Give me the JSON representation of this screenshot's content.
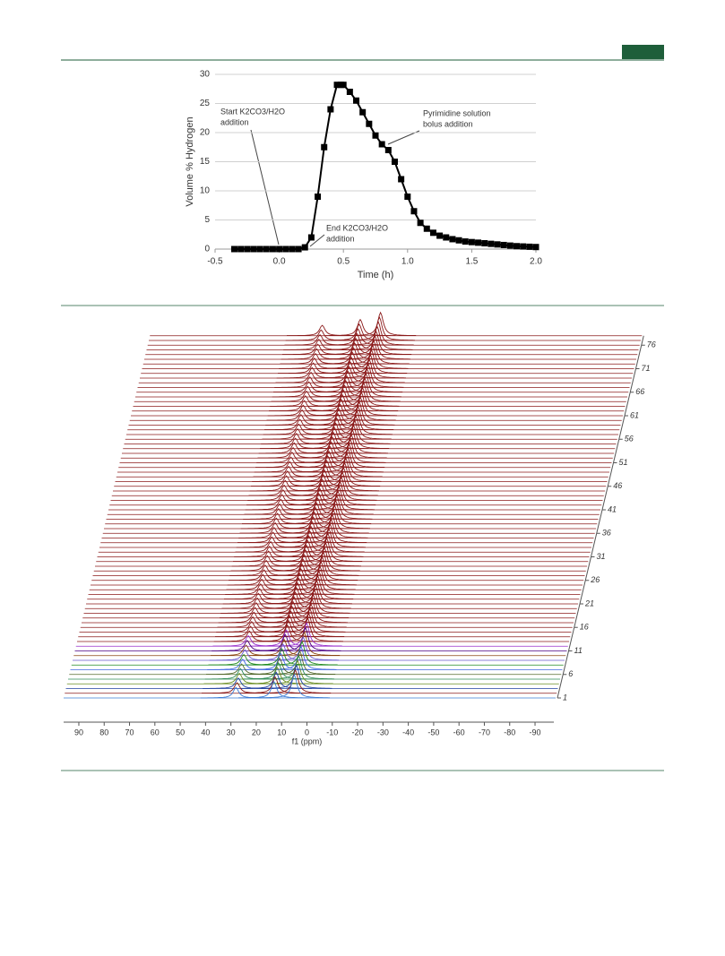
{
  "chart_data": [
    {
      "type": "line",
      "x_label": "Time (h)",
      "y_label": "Volume % Hydrogen",
      "x": [
        -0.35,
        -0.3,
        -0.25,
        -0.2,
        -0.15,
        -0.1,
        -0.05,
        0,
        0.05,
        0.1,
        0.15,
        0.2,
        0.25,
        0.3,
        0.35,
        0.4,
        0.45,
        0.48,
        0.5,
        0.55,
        0.6,
        0.65,
        0.7,
        0.75,
        0.8,
        0.85,
        0.9,
        0.95,
        1.0,
        1.05,
        1.1,
        1.15,
        1.2,
        1.25,
        1.3,
        1.35,
        1.4,
        1.45,
        1.5,
        1.55,
        1.6,
        1.65,
        1.7,
        1.75,
        1.8,
        1.85,
        1.9,
        1.95,
        2.0
      ],
      "values": [
        0,
        0,
        0,
        0,
        0,
        0,
        0,
        0,
        0,
        0,
        0,
        0.3,
        2,
        9,
        17.5,
        24,
        28.2,
        28.2,
        28.2,
        27,
        25.5,
        23.5,
        21.5,
        19.5,
        18,
        17,
        15,
        12,
        9,
        6.5,
        4.5,
        3.5,
        2.8,
        2.3,
        2,
        1.7,
        1.5,
        1.3,
        1.2,
        1.1,
        1.0,
        0.9,
        0.8,
        0.7,
        0.6,
        0.5,
        0.45,
        0.4,
        0.35
      ],
      "color": "#000000",
      "xlim": [
        -0.5,
        2.0
      ],
      "xticks": [
        -0.5,
        {
          "value": 0,
          "label": "0.0"
        },
        0.5,
        {
          "value": 1,
          "label": "1.0"
        },
        1.5,
        {
          "value": 2,
          "label": "2.0"
        }
      ],
      "ylim": [
        0,
        30
      ],
      "yticks": [
        0,
        5,
        10,
        15,
        20,
        25,
        30
      ],
      "grid": true,
      "annotations": [
        {
          "lines": [
            "Start K2CO3/H2O",
            "addition"
          ]
        },
        {
          "lines": [
            "End K2CO3/H2O",
            "addition"
          ]
        },
        {
          "lines": [
            "Pyrimidine solution",
            "bolus addition"
          ]
        }
      ]
    },
    {
      "type": "stacked-spectra",
      "x_label": "f1 (ppm)",
      "xlim": [
        96,
        -96
      ],
      "xticks": [
        90,
        80,
        70,
        60,
        50,
        40,
        30,
        20,
        10,
        0,
        -10,
        -20,
        -30,
        -40,
        -50,
        -60,
        -70,
        -80,
        -90
      ],
      "zlim": [
        1,
        78
      ],
      "zticks": [
        1,
        6,
        11,
        16,
        21,
        26,
        31,
        36,
        41,
        46,
        51,
        56,
        61,
        66,
        71,
        76
      ],
      "peaks": [
        {
          "ppm": 28,
          "height": 0.45
        },
        {
          "ppm": 13,
          "height": 0.7
        },
        {
          "ppm": 5,
          "height": 1.0
        }
      ],
      "row_colors": [
        "#3a7bd5",
        "#8b1a1a",
        "#1f3f9f",
        "#6b8e23",
        "#2e8b57",
        "#556b2f",
        "#4169e1",
        "#228b22",
        "#6a5acd",
        "#8b4513",
        "#4b0082",
        "#9932cc"
      ],
      "color": "#8b1a1a"
    }
  ]
}
